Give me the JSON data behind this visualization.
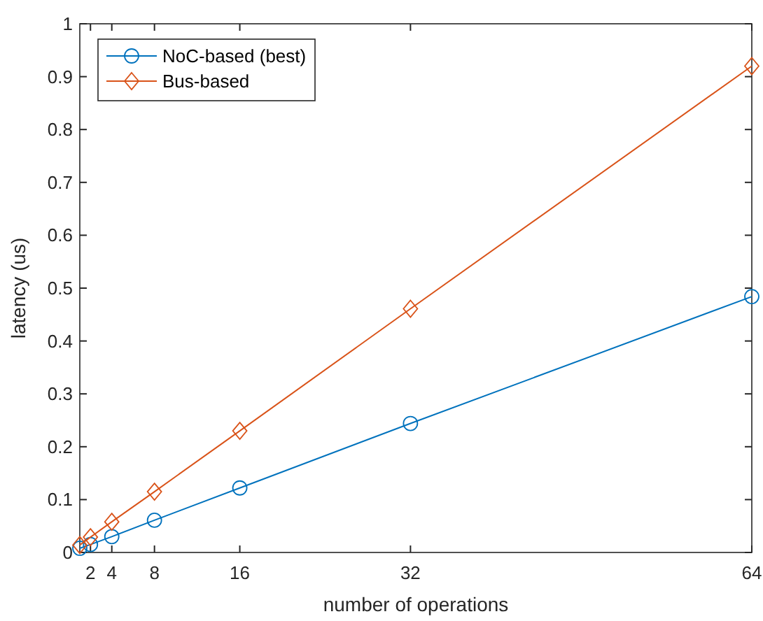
{
  "chart_data": {
    "type": "line",
    "xlabel": "number of operations",
    "ylabel": "latency (us)",
    "x": [
      1,
      2,
      4,
      8,
      16,
      32,
      64
    ],
    "series": [
      {
        "name": "NoC-based (best)",
        "color": "#0072bd",
        "marker": "circle",
        "values": [
          0.008,
          0.015,
          0.03,
          0.061,
          0.122,
          0.244,
          0.484
        ]
      },
      {
        "name": "Bus-based",
        "color": "#d95319",
        "marker": "diamond",
        "values": [
          0.014,
          0.029,
          0.058,
          0.115,
          0.23,
          0.461,
          0.92
        ]
      }
    ],
    "xlim": [
      1,
      64
    ],
    "xticks": [
      2,
      4,
      8,
      16,
      32,
      64
    ],
    "ylim": [
      0,
      1
    ],
    "yticks": [
      0,
      0.1,
      0.2,
      0.3,
      0.4,
      0.5,
      0.6,
      0.7,
      0.8,
      0.9,
      1
    ],
    "grid": false,
    "legend": "top left",
    "line_style": "solid"
  }
}
